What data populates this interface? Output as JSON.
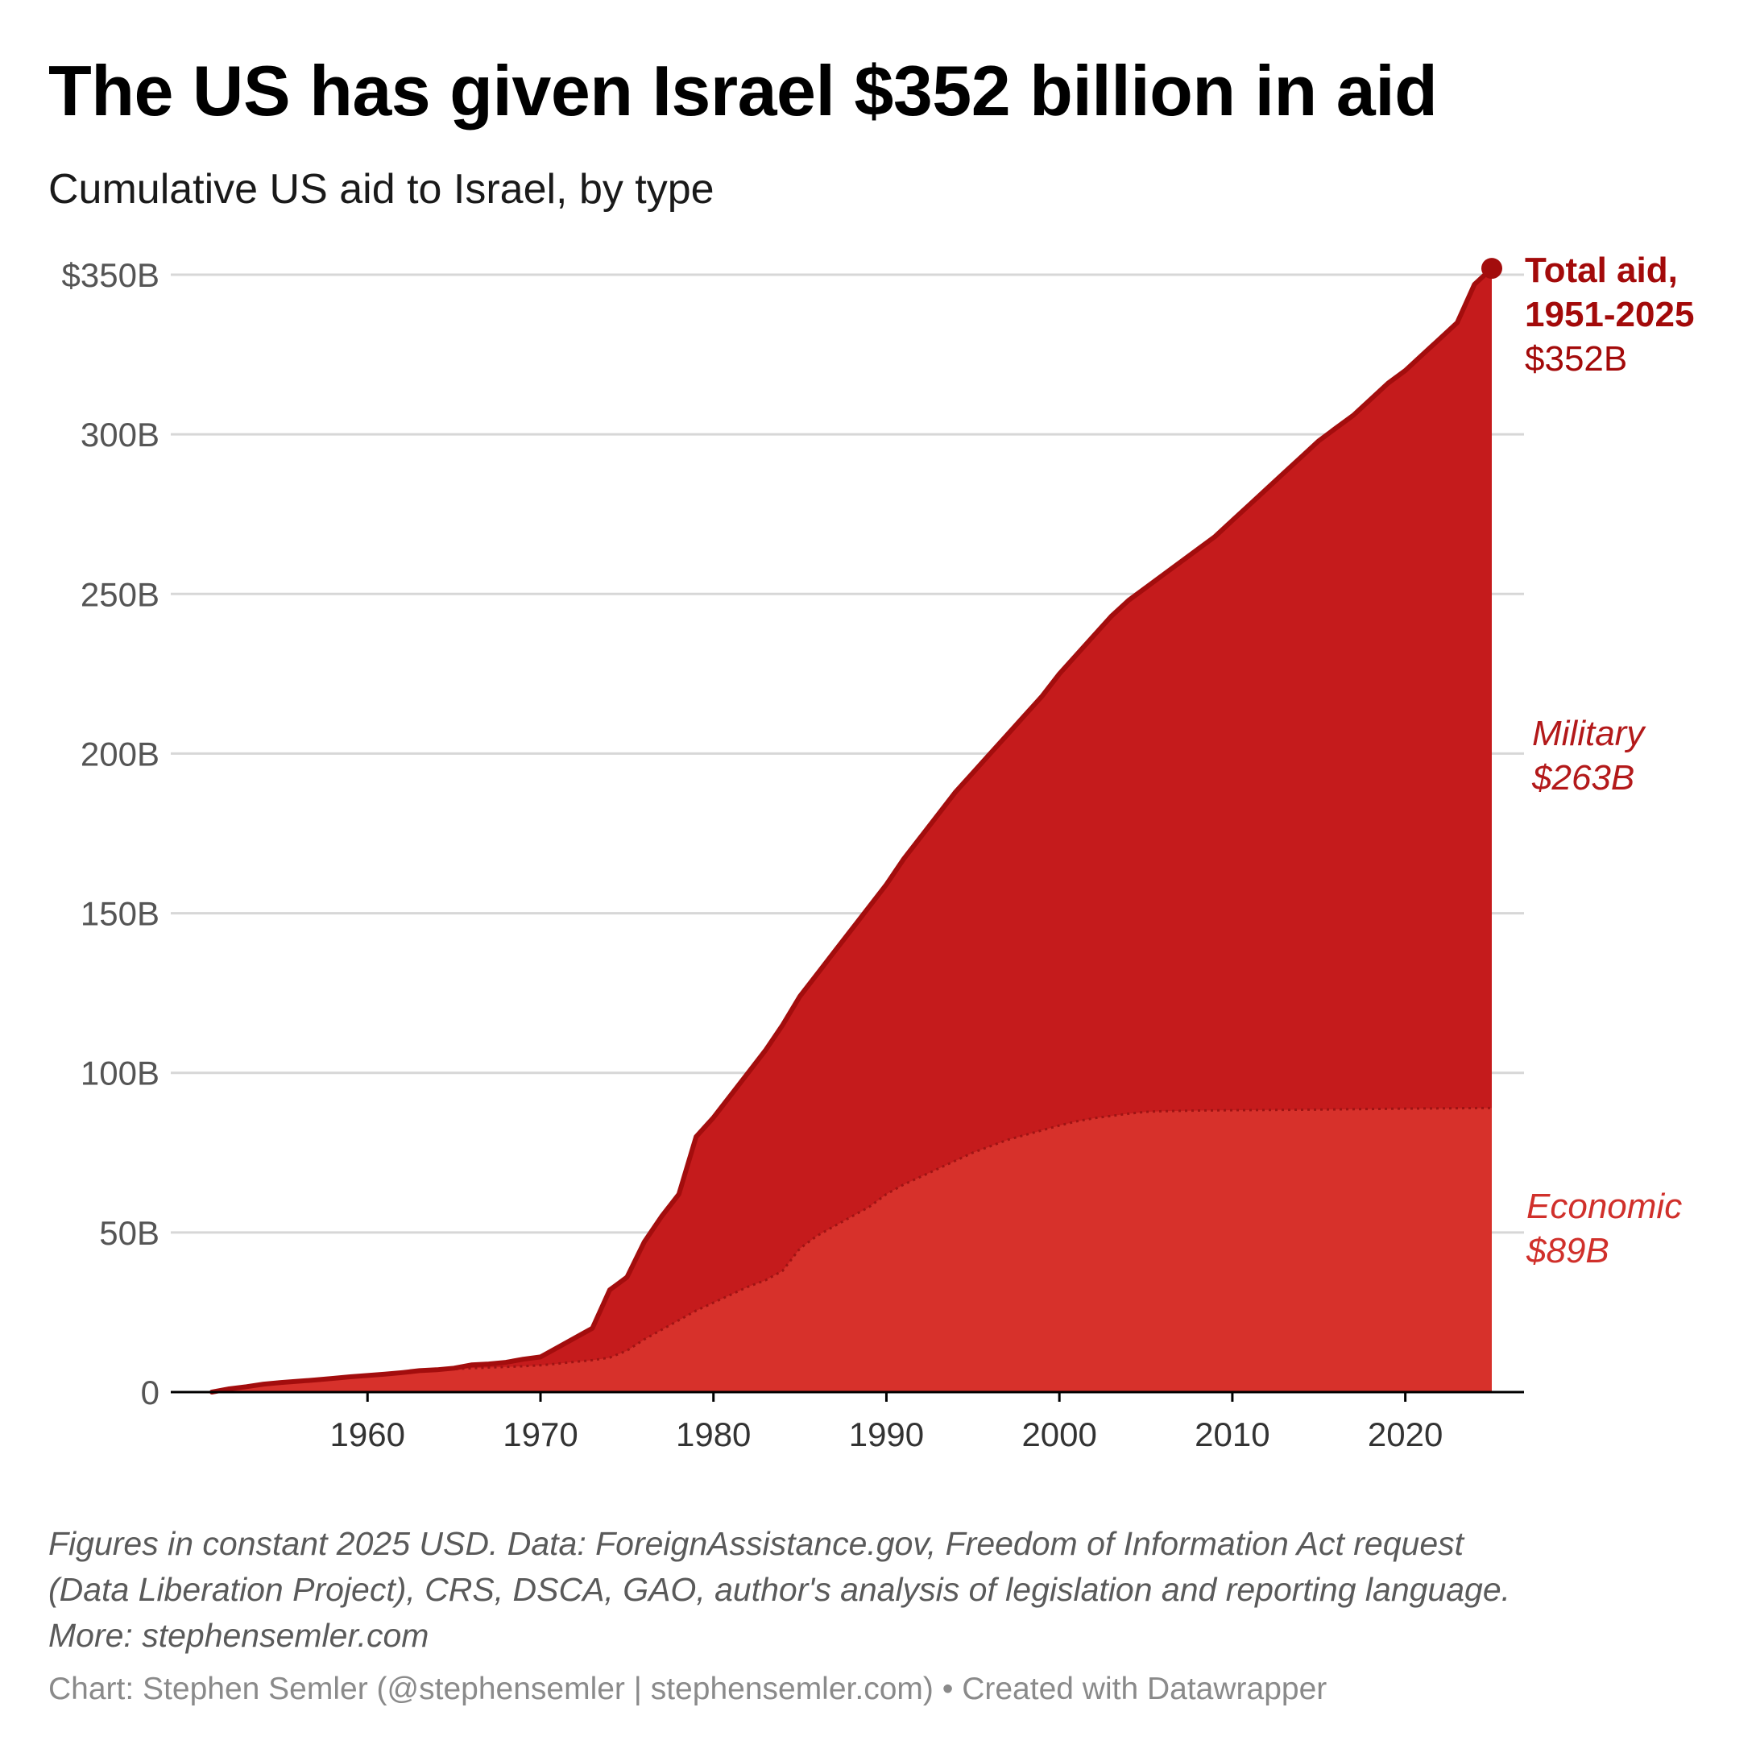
{
  "title": "The US has given Israel $352 billion in aid",
  "subtitle": "Cumulative US aid to Israel, by type",
  "notes": {
    "line1": "Figures in constant 2025 USD. Data: ForeignAssistance.gov, Freedom of Information Act request",
    "line2": "(Data Liberation Project), CRS, DSCA, GAO, author's analysis of legislation and reporting language.",
    "line3": "More: stephensemler.com"
  },
  "credit": "Chart: Stephen Semler (@stephensemler | stephensemler.com) • Created with Datawrapper",
  "colors": {
    "military": "#c51b1c",
    "economic": "#d7312b",
    "total_line": "#a30d0d",
    "grid": "#d7d7d7",
    "axis": "#000000"
  },
  "chart_data": {
    "type": "area",
    "stacked": true,
    "units": "billions of constant 2025 USD",
    "xlim": [
      1951,
      2025
    ],
    "ylim": [
      0,
      350
    ],
    "y_ticks": [
      {
        "value": 350,
        "label": "$350B"
      },
      {
        "value": 300,
        "label": "300B"
      },
      {
        "value": 250,
        "label": "250B"
      },
      {
        "value": 200,
        "label": "200B"
      },
      {
        "value": 150,
        "label": "150B"
      },
      {
        "value": 100,
        "label": "100B"
      },
      {
        "value": 50,
        "label": "50B"
      },
      {
        "value": 0,
        "label": "0"
      }
    ],
    "x_ticks": [
      1960,
      1970,
      1980,
      1990,
      2000,
      2010,
      2020
    ],
    "series": [
      {
        "name": "Economic",
        "points": [
          [
            1951,
            0
          ],
          [
            1952,
            1
          ],
          [
            1953,
            1.7
          ],
          [
            1954,
            2.5
          ],
          [
            1955,
            3
          ],
          [
            1956,
            3.4
          ],
          [
            1957,
            3.8
          ],
          [
            1958,
            4.3
          ],
          [
            1959,
            4.8
          ],
          [
            1960,
            5.2
          ],
          [
            1961,
            5.6
          ],
          [
            1962,
            6.1
          ],
          [
            1963,
            6.5
          ],
          [
            1964,
            6.9
          ],
          [
            1965,
            7.2
          ],
          [
            1966,
            7.5
          ],
          [
            1967,
            7.7
          ],
          [
            1968,
            7.9
          ],
          [
            1969,
            8.1
          ],
          [
            1970,
            8.4
          ],
          [
            1971,
            8.9
          ],
          [
            1972,
            9.5
          ],
          [
            1973,
            10
          ],
          [
            1974,
            10.8
          ],
          [
            1975,
            13
          ],
          [
            1976,
            16.5
          ],
          [
            1977,
            19.5
          ],
          [
            1978,
            22.5
          ],
          [
            1979,
            25.5
          ],
          [
            1980,
            28
          ],
          [
            1981,
            30.5
          ],
          [
            1982,
            33
          ],
          [
            1983,
            35
          ],
          [
            1984,
            38
          ],
          [
            1985,
            45
          ],
          [
            1986,
            49
          ],
          [
            1987,
            52
          ],
          [
            1988,
            55
          ],
          [
            1989,
            58
          ],
          [
            1990,
            62
          ],
          [
            1991,
            65
          ],
          [
            1992,
            67.5
          ],
          [
            1993,
            70
          ],
          [
            1994,
            72.5
          ],
          [
            1995,
            75
          ],
          [
            1996,
            77
          ],
          [
            1997,
            79
          ],
          [
            1998,
            80.5
          ],
          [
            1999,
            82
          ],
          [
            2000,
            83.5
          ],
          [
            2001,
            84.8
          ],
          [
            2002,
            85.8
          ],
          [
            2003,
            86.5
          ],
          [
            2004,
            87.2
          ],
          [
            2005,
            87.8
          ],
          [
            2006,
            88
          ],
          [
            2007,
            88.1
          ],
          [
            2008,
            88.2
          ],
          [
            2010,
            88.3
          ],
          [
            2015,
            88.5
          ],
          [
            2020,
            88.8
          ],
          [
            2025,
            89
          ]
        ]
      },
      {
        "name": "Total",
        "points": [
          [
            1951,
            0
          ],
          [
            1952,
            1
          ],
          [
            1953,
            1.7
          ],
          [
            1954,
            2.5
          ],
          [
            1955,
            3
          ],
          [
            1956,
            3.4
          ],
          [
            1957,
            3.8
          ],
          [
            1958,
            4.3
          ],
          [
            1959,
            4.8
          ],
          [
            1960,
            5.2
          ],
          [
            1961,
            5.6
          ],
          [
            1962,
            6.1
          ],
          [
            1963,
            6.7
          ],
          [
            1964,
            7
          ],
          [
            1965,
            7.5
          ],
          [
            1966,
            8.5
          ],
          [
            1967,
            8.8
          ],
          [
            1968,
            9.3
          ],
          [
            1969,
            10.3
          ],
          [
            1970,
            11
          ],
          [
            1971,
            14
          ],
          [
            1972,
            17
          ],
          [
            1973,
            20
          ],
          [
            1974,
            32
          ],
          [
            1975,
            36
          ],
          [
            1976,
            47
          ],
          [
            1977,
            55
          ],
          [
            1978,
            62
          ],
          [
            1979,
            80
          ],
          [
            1980,
            86
          ],
          [
            1981,
            93
          ],
          [
            1982,
            100
          ],
          [
            1983,
            107
          ],
          [
            1984,
            115
          ],
          [
            1985,
            124
          ],
          [
            1986,
            131
          ],
          [
            1987,
            138
          ],
          [
            1988,
            145
          ],
          [
            1989,
            152
          ],
          [
            1990,
            159
          ],
          [
            1991,
            167
          ],
          [
            1992,
            174
          ],
          [
            1993,
            181
          ],
          [
            1994,
            188
          ],
          [
            1995,
            194
          ],
          [
            1996,
            200
          ],
          [
            1997,
            206
          ],
          [
            1998,
            212
          ],
          [
            1999,
            218
          ],
          [
            2000,
            225
          ],
          [
            2001,
            231
          ],
          [
            2002,
            237
          ],
          [
            2003,
            243
          ],
          [
            2004,
            248
          ],
          [
            2005,
            252
          ],
          [
            2006,
            256
          ],
          [
            2007,
            260
          ],
          [
            2008,
            264
          ],
          [
            2009,
            268
          ],
          [
            2010,
            273
          ],
          [
            2011,
            278
          ],
          [
            2012,
            283
          ],
          [
            2013,
            288
          ],
          [
            2014,
            293
          ],
          [
            2015,
            298
          ],
          [
            2016,
            302
          ],
          [
            2017,
            306
          ],
          [
            2018,
            311
          ],
          [
            2019,
            316
          ],
          [
            2020,
            320
          ],
          [
            2021,
            325
          ],
          [
            2022,
            330
          ],
          [
            2023,
            335
          ],
          [
            2024,
            347
          ],
          [
            2025,
            352
          ]
        ]
      }
    ],
    "labels": {
      "total_line1": "Total aid,",
      "total_line2": "1951-2025",
      "total_value": "$352B",
      "military_name": "Military",
      "military_value": "$263B",
      "economic_name": "Economic",
      "economic_value": "$89B"
    }
  }
}
